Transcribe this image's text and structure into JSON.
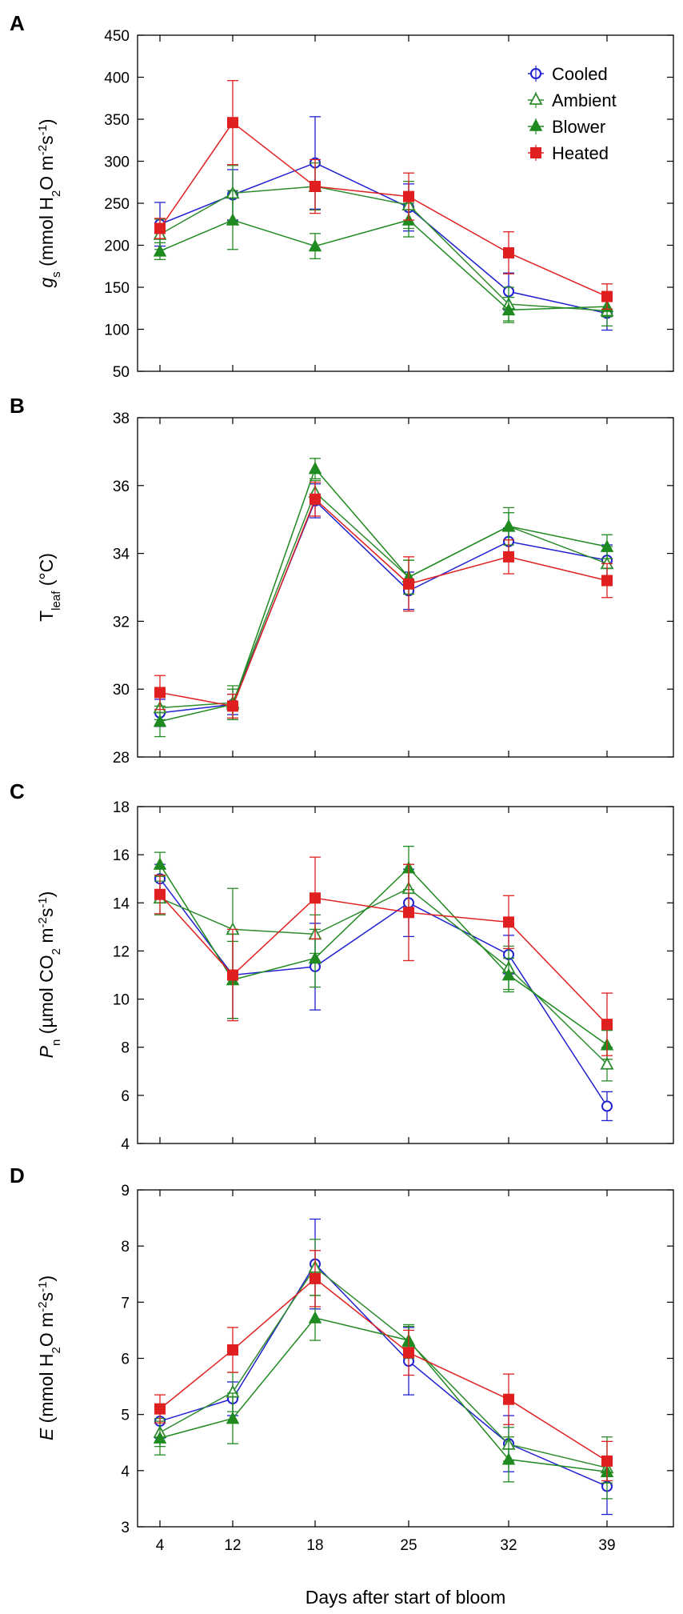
{
  "figure": {
    "xlabel": "Days after start of bloom"
  },
  "series_style": [
    {
      "name": "Cooled",
      "color": "#2020d0",
      "marker": "circle-open"
    },
    {
      "name": "Ambient",
      "color": "#2e8b2e",
      "marker": "triangle-open"
    },
    {
      "name": "Blower",
      "color": "#1f8a1f",
      "marker": "triangle-filled"
    },
    {
      "name": "Heated",
      "color": "#e02020",
      "marker": "square-filled"
    }
  ],
  "chart_data": [
    {
      "type": "line",
      "panel": "A",
      "ylabel_parts": [
        "g",
        "s",
        " (mmol H",
        "2",
        "O m",
        "-2",
        "s",
        "-1",
        ")"
      ],
      "categories": [
        "4",
        "12",
        "18",
        "25",
        "32",
        "39"
      ],
      "ylim": [
        50,
        450
      ],
      "yticks": [
        "50",
        "100",
        "150",
        "200",
        "250",
        "300",
        "350",
        "400",
        "450"
      ],
      "legend": [
        "Cooled",
        "Ambient",
        "Blower",
        "Heated"
      ],
      "series": [
        {
          "name": "Cooled",
          "values": [
            225,
            260,
            298,
            245,
            145,
            119
          ],
          "errors": [
            26,
            30,
            55,
            28,
            22,
            20
          ]
        },
        {
          "name": "Ambient",
          "values": [
            213,
            262,
            270,
            248,
            130,
            122
          ],
          "errors": [
            18,
            33,
            28,
            28,
            20,
            18
          ]
        },
        {
          "name": "Blower",
          "values": [
            193,
            230,
            199,
            230,
            123,
            127
          ],
          "errors": [
            10,
            35,
            15,
            20,
            15,
            12
          ]
        },
        {
          "name": "Heated",
          "values": [
            220,
            346,
            270,
            258,
            191,
            139
          ],
          "errors": [
            12,
            50,
            32,
            28,
            25,
            15
          ]
        }
      ]
    },
    {
      "type": "line",
      "panel": "B",
      "ylabel_parts": [
        "T",
        "leaf",
        " (°C)"
      ],
      "categories": [
        "4",
        "12",
        "18",
        "25",
        "32",
        "39"
      ],
      "ylim": [
        28,
        38
      ],
      "yticks": [
        "28",
        "30",
        "32",
        "34",
        "36",
        "38"
      ],
      "series": [
        {
          "name": "Cooled",
          "values": [
            29.3,
            29.55,
            35.55,
            32.9,
            34.35,
            33.8
          ],
          "errors": [
            0.4,
            0.3,
            0.5,
            0.55,
            0.4,
            0.45
          ]
        },
        {
          "name": "Ambient",
          "values": [
            29.45,
            29.6,
            35.8,
            33.3,
            34.8,
            33.7
          ],
          "errors": [
            0.35,
            0.5,
            0.35,
            0.5,
            0.55,
            0.5
          ]
        },
        {
          "name": "Blower",
          "values": [
            29.05,
            29.55,
            36.5,
            33.3,
            34.8,
            34.2
          ],
          "errors": [
            0.45,
            0.45,
            0.3,
            0.5,
            0.4,
            0.35
          ]
        },
        {
          "name": "Heated",
          "values": [
            29.9,
            29.5,
            35.6,
            33.1,
            33.9,
            33.2
          ],
          "errors": [
            0.5,
            0.35,
            0.5,
            0.8,
            0.5,
            0.5
          ]
        }
      ]
    },
    {
      "type": "line",
      "panel": "C",
      "ylabel_parts": [
        "P",
        "n",
        " (µmol CO",
        "2",
        " m",
        "-2",
        "s",
        "-1",
        ")"
      ],
      "categories": [
        "4",
        "12",
        "18",
        "25",
        "32",
        "39"
      ],
      "ylim": [
        4,
        18
      ],
      "yticks": [
        "4",
        "6",
        "8",
        "10",
        "12",
        "14",
        "16",
        "18"
      ],
      "series": [
        {
          "name": "Cooled",
          "values": [
            15.0,
            11.0,
            11.35,
            14.0,
            11.85,
            5.55
          ],
          "errors": [
            0.6,
            1.8,
            1.8,
            1.4,
            0.8,
            0.6
          ]
        },
        {
          "name": "Ambient",
          "values": [
            14.2,
            12.9,
            12.7,
            14.6,
            11.3,
            7.3
          ],
          "errors": [
            0.7,
            1.7,
            0.8,
            1.0,
            0.9,
            0.7
          ]
        },
        {
          "name": "Blower",
          "values": [
            15.6,
            10.8,
            11.7,
            15.45,
            11.0,
            8.1
          ],
          "errors": [
            0.5,
            1.6,
            1.2,
            0.9,
            0.7,
            0.6
          ]
        },
        {
          "name": "Heated",
          "values": [
            14.35,
            11.0,
            14.2,
            13.6,
            13.2,
            8.95
          ],
          "errors": [
            0.8,
            1.9,
            1.7,
            2.0,
            1.1,
            1.3
          ]
        }
      ]
    },
    {
      "type": "line",
      "panel": "D",
      "ylabel_parts": [
        "E",
        " (mmol H",
        "2",
        "O m",
        "-2",
        "s",
        "-1",
        ")"
      ],
      "categories": [
        "4",
        "12",
        "18",
        "25",
        "32",
        "39"
      ],
      "ylim": [
        3,
        9
      ],
      "yticks": [
        "3",
        "4",
        "5",
        "6",
        "7",
        "8",
        "9"
      ],
      "series": [
        {
          "name": "Cooled",
          "values": [
            4.88,
            5.28,
            7.68,
            5.95,
            4.48,
            3.72
          ],
          "errors": [
            0.3,
            0.3,
            0.8,
            0.6,
            0.5,
            0.5
          ]
        },
        {
          "name": "Ambient",
          "values": [
            4.68,
            5.4,
            7.62,
            6.3,
            4.47,
            4.05
          ],
          "errors": [
            0.25,
            0.35,
            0.5,
            0.3,
            0.3,
            0.55
          ]
        },
        {
          "name": "Blower",
          "values": [
            4.58,
            4.93,
            6.72,
            6.32,
            4.2,
            3.98
          ],
          "errors": [
            0.3,
            0.45,
            0.4,
            0.25,
            0.4,
            0.2
          ]
        },
        {
          "name": "Heated",
          "values": [
            5.1,
            6.15,
            7.42,
            6.1,
            5.27,
            4.17
          ],
          "errors": [
            0.25,
            0.4,
            0.5,
            0.4,
            0.45,
            0.35
          ]
        }
      ]
    }
  ]
}
